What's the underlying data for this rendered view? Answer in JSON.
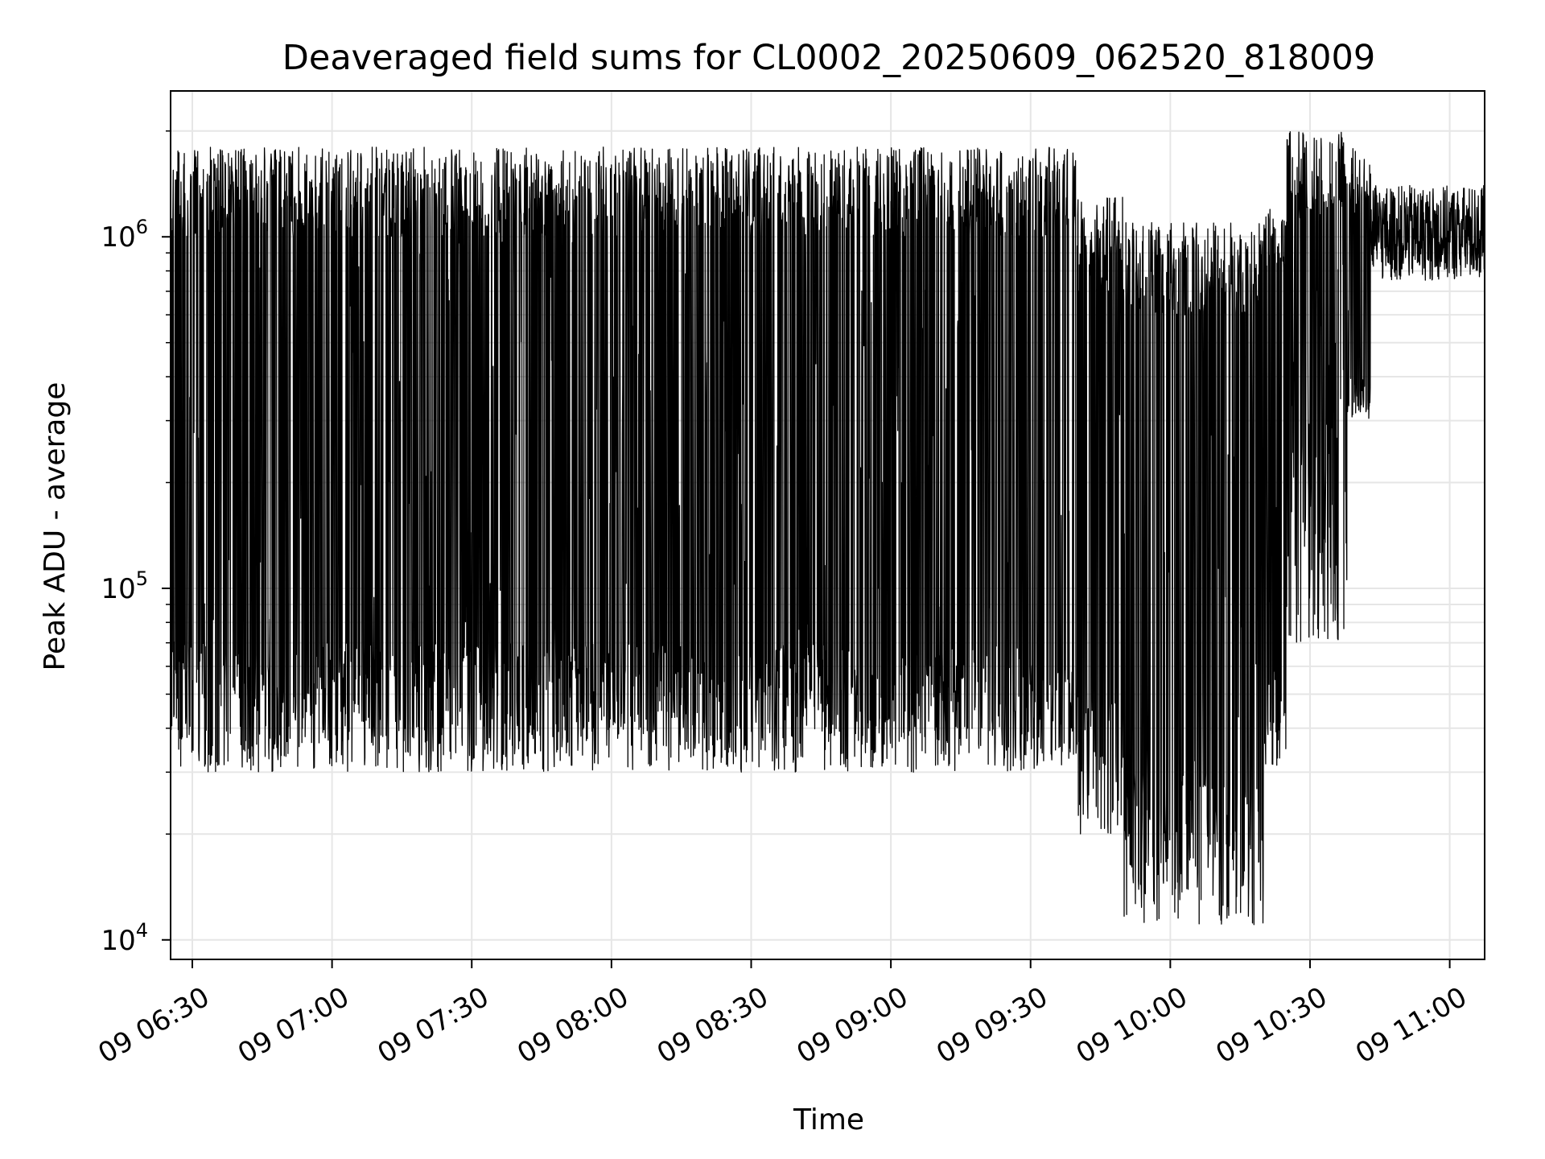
{
  "chart_data": {
    "type": "line",
    "title": "Deaveraged field sums for CL0002_20250609_062520_818009",
    "xlabel": "Time",
    "ylabel": "Peak ADU - average",
    "xscale": "time",
    "yscale": "log",
    "xlim": [
      "2025-06-09 06:25:20",
      "2025-06-09 11:07:30"
    ],
    "ylim": [
      8800,
      2600000
    ],
    "grid": true,
    "legend": "none",
    "line_color": "#000000",
    "grid_color": "#e6e6e6",
    "x_ticks": [
      {
        "value": "2025-06-09 06:30",
        "label": "09 06:30"
      },
      {
        "value": "2025-06-09 07:00",
        "label": "09 07:00"
      },
      {
        "value": "2025-06-09 07:30",
        "label": "09 07:30"
      },
      {
        "value": "2025-06-09 08:00",
        "label": "09 08:00"
      },
      {
        "value": "2025-06-09 08:30",
        "label": "09 08:30"
      },
      {
        "value": "2025-06-09 09:00",
        "label": "09 09:00"
      },
      {
        "value": "2025-06-09 09:30",
        "label": "09 09:30"
      },
      {
        "value": "2025-06-09 10:00",
        "label": "09 10:00"
      },
      {
        "value": "2025-06-09 10:30",
        "label": "09 10:30"
      },
      {
        "value": "2025-06-09 11:00",
        "label": "09 11:00"
      }
    ],
    "y_ticks": [
      {
        "value": 10000,
        "base": "10",
        "exp": "4"
      },
      {
        "value": 100000,
        "base": "10",
        "exp": "5"
      },
      {
        "value": 1000000,
        "base": "10",
        "exp": "6"
      }
    ],
    "y_minor_ticks": [
      20000,
      30000,
      40000,
      50000,
      60000,
      70000,
      80000,
      90000,
      200000,
      300000,
      400000,
      500000,
      600000,
      700000,
      800000,
      900000,
      2000000
    ],
    "segments": [
      {
        "start": "2025-06-09 06:25:20",
        "end": "2025-06-09 09:40",
        "low_min": 30000,
        "low_max": 70000,
        "high_min": 1000000,
        "high_max": 1800000
      },
      {
        "start": "2025-06-09 09:40",
        "end": "2025-06-09 09:50",
        "low_min": 20000,
        "low_max": 50000,
        "high_min": 700000,
        "high_max": 1300000
      },
      {
        "start": "2025-06-09 09:50",
        "end": "2025-06-09 10:20",
        "low_min": 11000,
        "low_max": 30000,
        "high_min": 600000,
        "high_max": 1100000
      },
      {
        "start": "2025-06-09 10:20",
        "end": "2025-06-09 10:25",
        "low_min": 30000,
        "low_max": 60000,
        "high_min": 800000,
        "high_max": 1200000
      },
      {
        "start": "2025-06-09 10:25",
        "end": "2025-06-09 10:38",
        "low_min": 70000,
        "low_max": 300000,
        "high_min": 1100000,
        "high_max": 2000000
      },
      {
        "start": "2025-06-09 10:38",
        "end": "2025-06-09 10:43",
        "low_min": 300000,
        "low_max": 400000,
        "high_min": 1100000,
        "high_max": 1800000
      },
      {
        "start": "2025-06-09 10:43",
        "end": "2025-06-09 11:07:30",
        "low_min": 750000,
        "low_max": 950000,
        "high_min": 1000000,
        "high_max": 1400000
      }
    ]
  }
}
